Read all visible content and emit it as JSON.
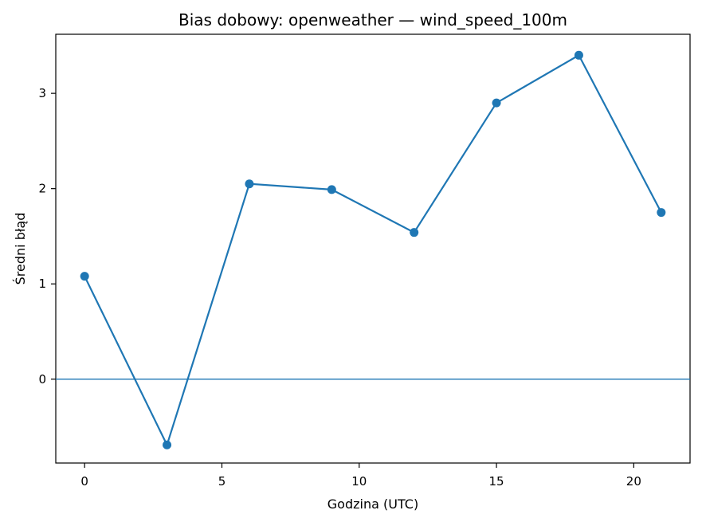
{
  "chart_data": {
    "type": "line",
    "title": "Bias dobowy: openweather — wind_speed_100m",
    "xlabel": "Godzina (UTC)",
    "ylabel": "Średni błąd",
    "x": [
      0,
      3,
      6,
      9,
      12,
      15,
      18,
      21
    ],
    "series": [
      {
        "values": [
          1.08,
          -0.69,
          2.05,
          1.99,
          1.54,
          2.9,
          3.4,
          1.75
        ]
      }
    ],
    "xlim": [
      -1.05,
      22.05
    ],
    "ylim": [
      -0.88,
      3.62
    ],
    "xticks": [
      0,
      5,
      10,
      15,
      20
    ],
    "yticks": [
      0,
      1,
      2,
      3
    ],
    "reference_line_y": 0,
    "grid": false,
    "colors": {
      "series": "#1f77b4",
      "reference": "#1f77b4",
      "axes": "#000000"
    }
  }
}
